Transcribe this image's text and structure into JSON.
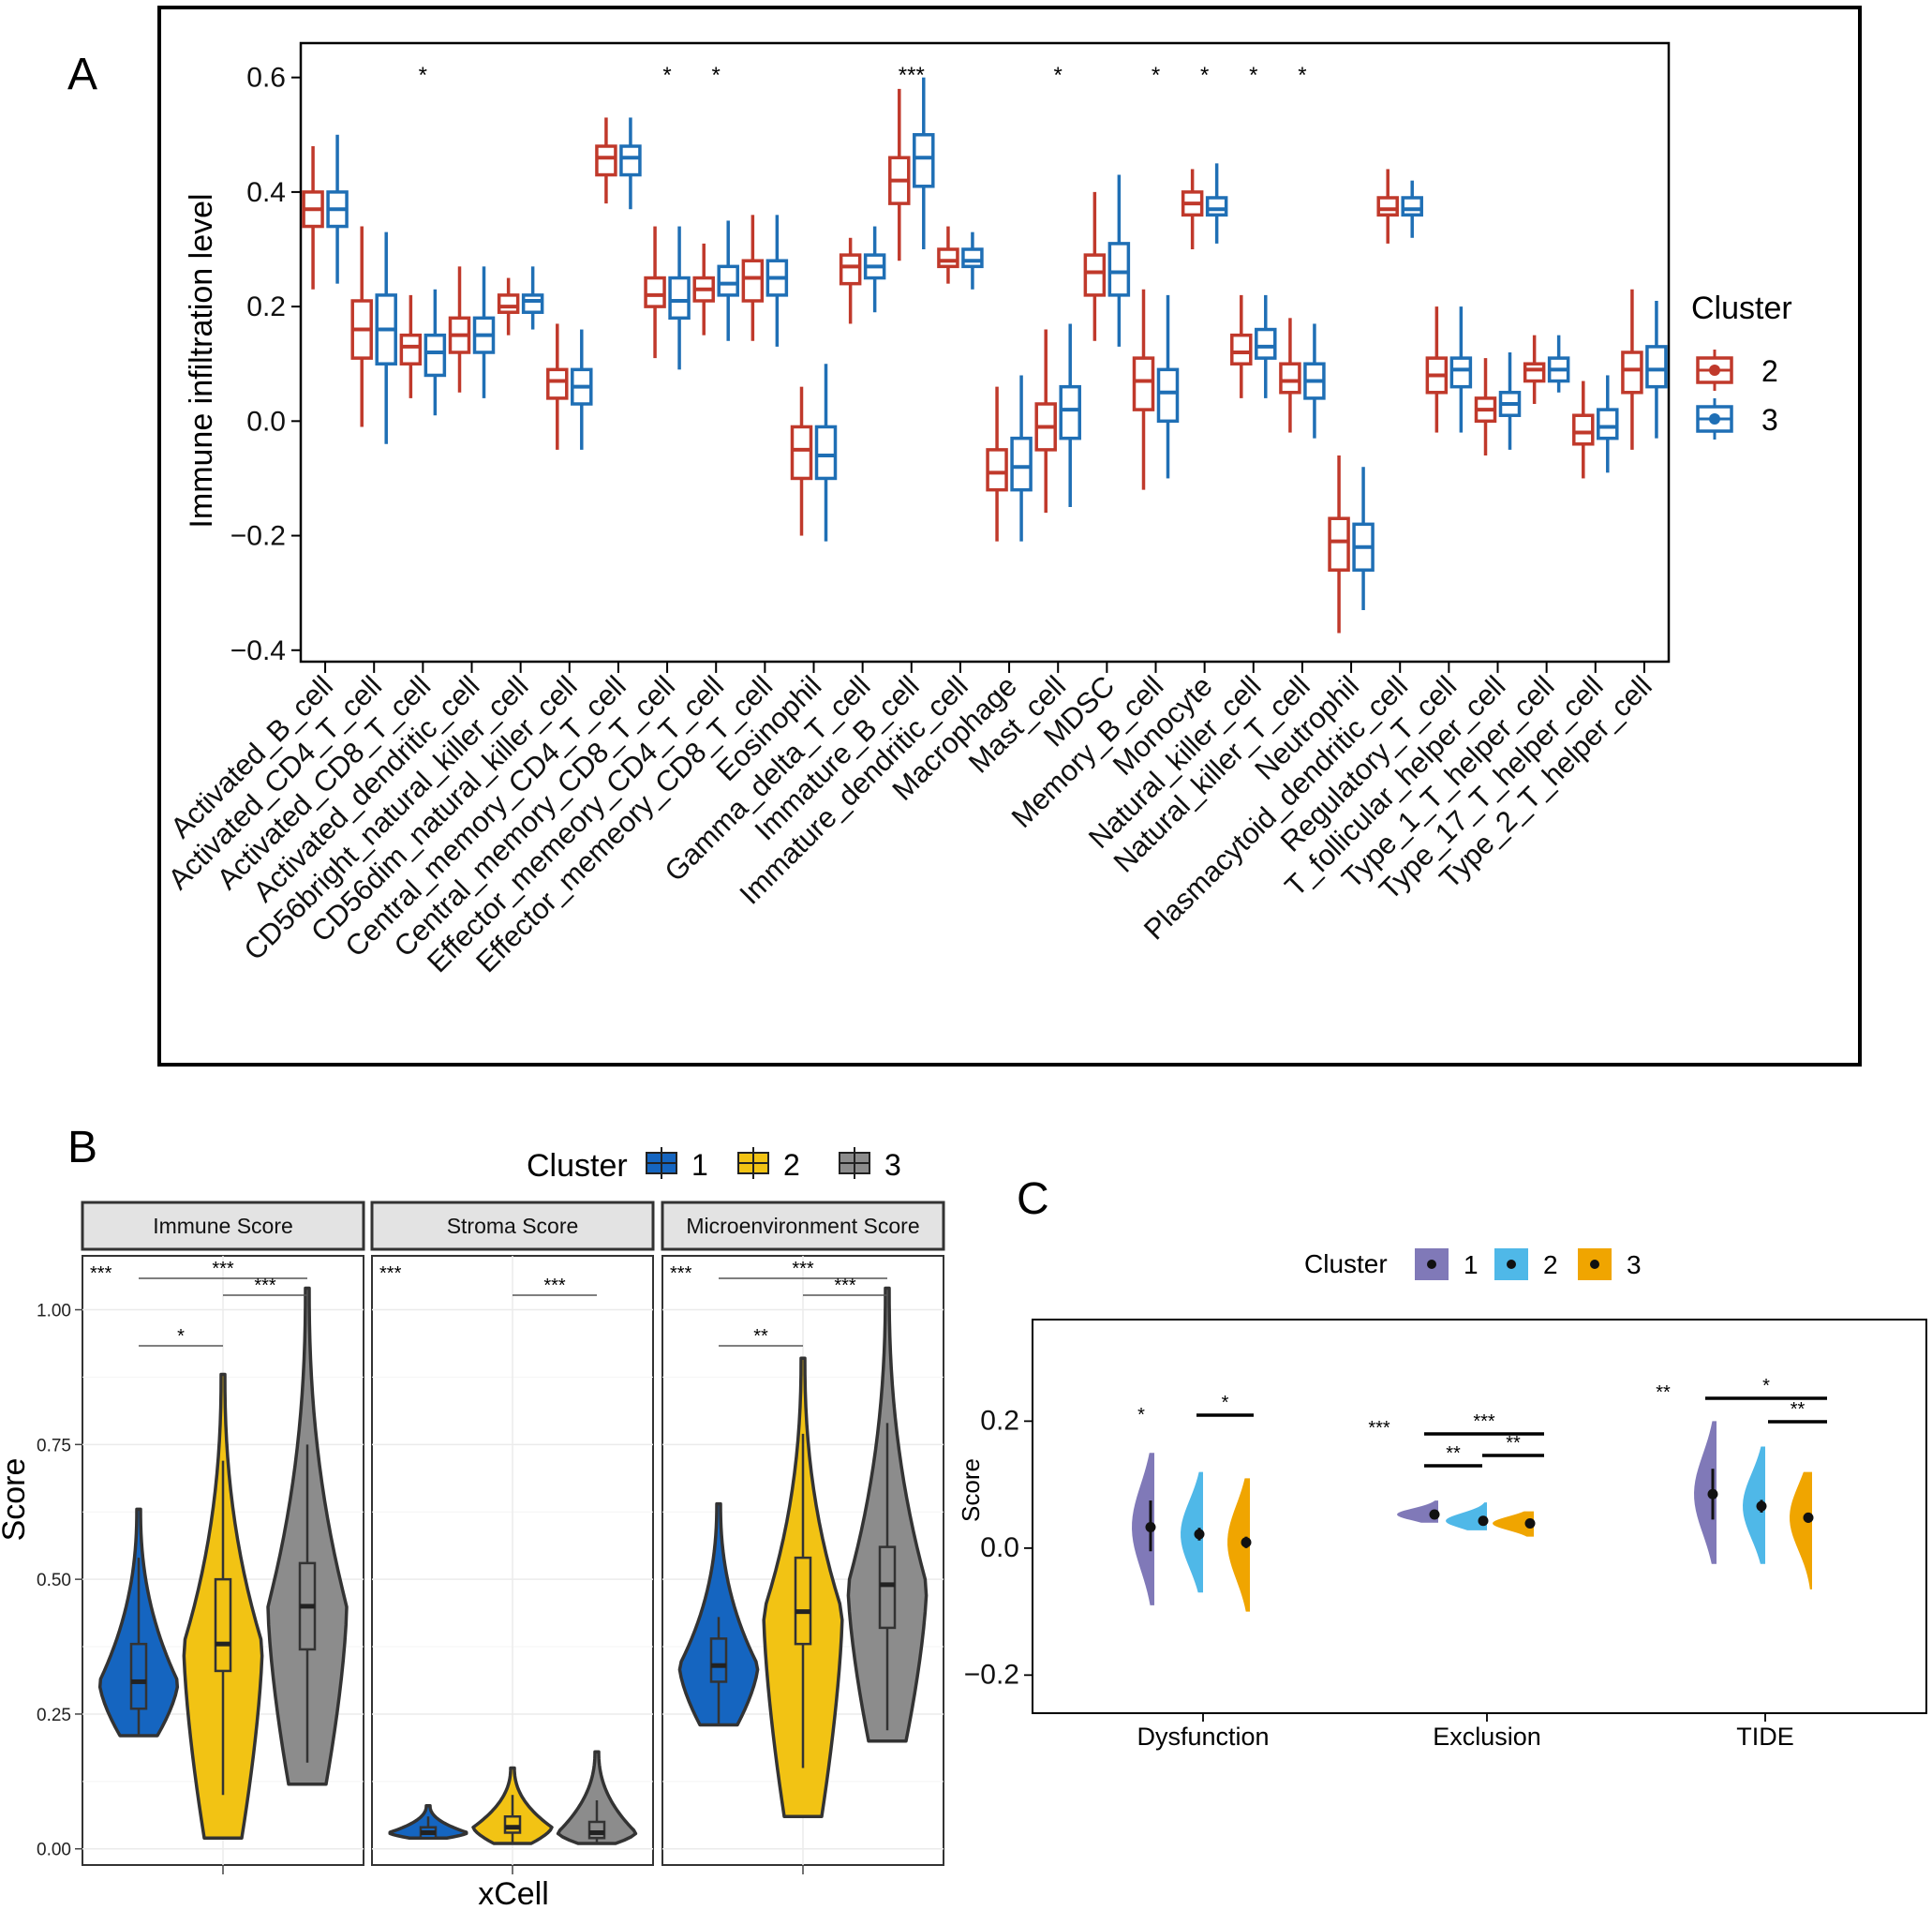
{
  "panels": {
    "a": "A",
    "b": "B",
    "c": "C"
  },
  "colors": {
    "cluster2_a": "#C0392B",
    "cluster3_a": "#1F6FB5",
    "b_cluster1": "#1565C0",
    "b_cluster2": "#F2C314",
    "b_cluster3": "#8C8C8C",
    "c_cluster1": "#8079B8",
    "c_cluster2": "#4FB8E8",
    "c_cluster3": "#F0A500"
  },
  "chart_data": [
    {
      "type": "boxplot",
      "id": "panelA",
      "ylabel": "Immune infiltration level",
      "yticks": [
        -0.4,
        -0.2,
        0.0,
        0.2,
        0.4,
        0.6
      ],
      "ytick_labels": [
        "−0.4",
        "−0.2",
        "0.0",
        "0.2",
        "0.4",
        "0.6"
      ],
      "ylim": [
        -0.42,
        0.66
      ],
      "legend": {
        "title": "Cluster",
        "entries": [
          "2",
          "3"
        ]
      },
      "categories": [
        "Activated_B_cell",
        "Activated_CD4_T_cell",
        "Activated_CD8_T_cell",
        "Activated_dendritic_cell",
        "CD56bright_natural_killer_cell",
        "CD56dim_natural_killer_cell",
        "Central_memory_CD4_T_cell",
        "Central_memory_CD8_T_cell",
        "Effector_memeory_CD4_T_cell",
        "Effector_memeory_CD8_T_cell",
        "Eosinophil",
        "Gamma_delta_T_cell",
        "Immature_B_cell",
        "Immature_dendritic_cell",
        "Macrophage",
        "Mast_cell",
        "MDSC",
        "Memory_B_cell",
        "Monocyte",
        "Natural_killer_cell",
        "Natural_killer_T_cell",
        "Neutrophil",
        "Plasmacytoid_dendritic_cell",
        "Regulatory_T_cell",
        "T_follicular_helper_cell",
        "Type_1_T_helper_cell",
        "Type_17_T_helper_cell",
        "Type_2_T_helper_cell"
      ],
      "significance": [
        "",
        "",
        "*",
        "",
        "",
        "",
        "",
        "*",
        "*",
        "",
        "",
        "",
        "***",
        "",
        "",
        "*",
        "",
        "*",
        "*",
        "*",
        "*",
        "",
        "",
        "",
        "",
        "",
        "",
        ""
      ],
      "series": [
        {
          "name": "2",
          "stats": [
            [
              0.23,
              0.34,
              0.37,
              0.4,
              0.48
            ],
            [
              -0.01,
              0.11,
              0.16,
              0.21,
              0.34
            ],
            [
              0.04,
              0.1,
              0.13,
              0.15,
              0.22
            ],
            [
              0.05,
              0.12,
              0.15,
              0.18,
              0.27
            ],
            [
              0.15,
              0.19,
              0.2,
              0.22,
              0.25
            ],
            [
              -0.05,
              0.04,
              0.07,
              0.09,
              0.17
            ],
            [
              0.38,
              0.43,
              0.46,
              0.48,
              0.53
            ],
            [
              0.11,
              0.2,
              0.22,
              0.25,
              0.34
            ],
            [
              0.15,
              0.21,
              0.23,
              0.25,
              0.31
            ],
            [
              0.14,
              0.21,
              0.25,
              0.28,
              0.36
            ],
            [
              -0.2,
              -0.1,
              -0.05,
              -0.01,
              0.06
            ],
            [
              0.17,
              0.24,
              0.27,
              0.29,
              0.32
            ],
            [
              0.28,
              0.38,
              0.42,
              0.46,
              0.58
            ],
            [
              0.24,
              0.27,
              0.28,
              0.3,
              0.34
            ],
            [
              -0.21,
              -0.12,
              -0.09,
              -0.05,
              0.06
            ],
            [
              -0.16,
              -0.05,
              -0.01,
              0.03,
              0.16
            ],
            [
              0.14,
              0.22,
              0.26,
              0.29,
              0.4
            ],
            [
              -0.12,
              0.02,
              0.07,
              0.11,
              0.23
            ],
            [
              0.3,
              0.36,
              0.38,
              0.4,
              0.44
            ],
            [
              0.04,
              0.1,
              0.12,
              0.15,
              0.22
            ],
            [
              -0.02,
              0.05,
              0.07,
              0.1,
              0.18
            ],
            [
              -0.37,
              -0.26,
              -0.21,
              -0.17,
              -0.06
            ],
            [
              0.31,
              0.36,
              0.37,
              0.39,
              0.44
            ],
            [
              -0.02,
              0.05,
              0.08,
              0.11,
              0.2
            ],
            [
              -0.06,
              0.0,
              0.02,
              0.04,
              0.11
            ],
            [
              0.03,
              0.07,
              0.09,
              0.1,
              0.15
            ],
            [
              -0.1,
              -0.04,
              -0.02,
              0.01,
              0.07
            ],
            [
              -0.05,
              0.05,
              0.09,
              0.12,
              0.23
            ]
          ]
        },
        {
          "name": "3",
          "stats": [
            [
              0.24,
              0.34,
              0.37,
              0.4,
              0.5
            ],
            [
              -0.04,
              0.1,
              0.16,
              0.22,
              0.33
            ],
            [
              0.01,
              0.08,
              0.12,
              0.15,
              0.23
            ],
            [
              0.04,
              0.12,
              0.15,
              0.18,
              0.27
            ],
            [
              0.16,
              0.19,
              0.21,
              0.22,
              0.27
            ],
            [
              -0.05,
              0.03,
              0.06,
              0.09,
              0.16
            ],
            [
              0.37,
              0.43,
              0.46,
              0.48,
              0.53
            ],
            [
              0.09,
              0.18,
              0.21,
              0.25,
              0.34
            ],
            [
              0.14,
              0.22,
              0.24,
              0.27,
              0.35
            ],
            [
              0.13,
              0.22,
              0.25,
              0.28,
              0.36
            ],
            [
              -0.21,
              -0.1,
              -0.06,
              -0.01,
              0.1
            ],
            [
              0.19,
              0.25,
              0.27,
              0.29,
              0.34
            ],
            [
              0.3,
              0.41,
              0.46,
              0.5,
              0.6
            ],
            [
              0.23,
              0.27,
              0.28,
              0.3,
              0.33
            ],
            [
              -0.21,
              -0.12,
              -0.08,
              -0.03,
              0.08
            ],
            [
              -0.15,
              -0.03,
              0.02,
              0.06,
              0.17
            ],
            [
              0.13,
              0.22,
              0.26,
              0.31,
              0.43
            ],
            [
              -0.1,
              0.0,
              0.05,
              0.09,
              0.22
            ],
            [
              0.31,
              0.36,
              0.37,
              0.39,
              0.45
            ],
            [
              0.04,
              0.11,
              0.13,
              0.16,
              0.22
            ],
            [
              -0.03,
              0.04,
              0.07,
              0.1,
              0.17
            ],
            [
              -0.33,
              -0.26,
              -0.22,
              -0.18,
              -0.08
            ],
            [
              0.32,
              0.36,
              0.37,
              0.39,
              0.42
            ],
            [
              -0.02,
              0.06,
              0.09,
              0.11,
              0.2
            ],
            [
              -0.05,
              0.01,
              0.03,
              0.05,
              0.12
            ],
            [
              0.05,
              0.07,
              0.09,
              0.11,
              0.15
            ],
            [
              -0.09,
              -0.03,
              -0.01,
              0.02,
              0.08
            ],
            [
              -0.03,
              0.06,
              0.09,
              0.13,
              0.21
            ]
          ]
        }
      ]
    },
    {
      "type": "violin",
      "id": "panelB",
      "xlabel": "xCell",
      "ylabel": "Score",
      "yticks": [
        0.0,
        0.25,
        0.5,
        0.75,
        1.0
      ],
      "ytick_labels": [
        "0.00",
        "0.25",
        "0.50",
        "0.75",
        "1.00"
      ],
      "ylim": [
        -0.03,
        1.1
      ],
      "legend": {
        "title": "Cluster",
        "entries": [
          "1",
          "2",
          "3"
        ]
      },
      "facets": [
        {
          "label": "Immune Score",
          "overall": "***",
          "groups": [
            {
              "cluster": "1",
              "min": 0.21,
              "max": 0.63,
              "q1": 0.26,
              "median": 0.31,
              "q3": 0.38,
              "wmin": 0.21,
              "wmax": 0.54
            },
            {
              "cluster": "2",
              "min": 0.02,
              "max": 0.88,
              "q1": 0.33,
              "median": 0.38,
              "q3": 0.5,
              "wmin": 0.1,
              "wmax": 0.72
            },
            {
              "cluster": "3",
              "min": 0.12,
              "max": 1.04,
              "q1": 0.37,
              "median": 0.45,
              "q3": 0.53,
              "wmin": 0.16,
              "wmax": 0.75
            }
          ],
          "comparisons": [
            {
              "from": "1",
              "to": "3",
              "label": "***"
            },
            {
              "from": "2",
              "to": "3",
              "label": "***"
            },
            {
              "from": "1",
              "to": "2",
              "label": "*"
            }
          ]
        },
        {
          "label": "Stroma Score",
          "overall": "***",
          "groups": [
            {
              "cluster": "1",
              "min": 0.02,
              "max": 0.08,
              "q1": 0.02,
              "median": 0.03,
              "q3": 0.04,
              "wmin": 0.02,
              "wmax": 0.06
            },
            {
              "cluster": "2",
              "min": 0.01,
              "max": 0.15,
              "q1": 0.03,
              "median": 0.04,
              "q3": 0.06,
              "wmin": 0.01,
              "wmax": 0.1
            },
            {
              "cluster": "3",
              "min": 0.01,
              "max": 0.18,
              "q1": 0.02,
              "median": 0.03,
              "q3": 0.05,
              "wmin": 0.01,
              "wmax": 0.09
            }
          ],
          "comparisons": [
            {
              "from": "2",
              "to": "3",
              "label": "***"
            }
          ]
        },
        {
          "label": "Microenvironment Score",
          "overall": "***",
          "groups": [
            {
              "cluster": "1",
              "min": 0.23,
              "max": 0.64,
              "q1": 0.31,
              "median": 0.34,
              "q3": 0.39,
              "wmin": 0.23,
              "wmax": 0.43
            },
            {
              "cluster": "2",
              "min": 0.06,
              "max": 0.91,
              "q1": 0.38,
              "median": 0.44,
              "q3": 0.54,
              "wmin": 0.15,
              "wmax": 0.77
            },
            {
              "cluster": "3",
              "min": 0.2,
              "max": 1.04,
              "q1": 0.41,
              "median": 0.49,
              "q3": 0.56,
              "wmin": 0.22,
              "wmax": 0.79
            }
          ],
          "comparisons": [
            {
              "from": "1",
              "to": "3",
              "label": "***"
            },
            {
              "from": "2",
              "to": "3",
              "label": "***"
            },
            {
              "from": "1",
              "to": "2",
              "label": "**"
            }
          ]
        }
      ]
    },
    {
      "type": "half-violin",
      "id": "panelC",
      "ylabel": "Score",
      "yticks": [
        -0.2,
        0.0,
        0.2
      ],
      "ytick_labels": [
        "−0.2",
        "0.0",
        "0.2"
      ],
      "ylim": [
        -0.26,
        0.36
      ],
      "legend": {
        "title": "Cluster",
        "entries": [
          "1",
          "2",
          "3"
        ]
      },
      "categories": [
        "Dysfunction",
        "Exclusion",
        "TIDE"
      ],
      "groups": [
        {
          "category": "Dysfunction",
          "overall": "*",
          "points": [
            {
              "cluster": "1",
              "mean": 0.033,
              "lo": -0.005,
              "hi": 0.075,
              "vmin": -0.09,
              "vmax": 0.15
            },
            {
              "cluster": "2",
              "mean": 0.022,
              "lo": 0.012,
              "hi": 0.032,
              "vmin": -0.07,
              "vmax": 0.12
            },
            {
              "cluster": "3",
              "mean": 0.009,
              "lo": 0.0,
              "hi": 0.018,
              "vmin": -0.1,
              "vmax": 0.11
            }
          ],
          "comparisons": [
            {
              "from": "2",
              "to": "3",
              "label": "*"
            }
          ]
        },
        {
          "category": "Exclusion",
          "overall": "***",
          "points": [
            {
              "cluster": "1",
              "mean": 0.053,
              "lo": 0.046,
              "hi": 0.06,
              "vmin": 0.04,
              "vmax": 0.075
            },
            {
              "cluster": "2",
              "mean": 0.043,
              "lo": 0.039,
              "hi": 0.047,
              "vmin": 0.028,
              "vmax": 0.072
            },
            {
              "cluster": "3",
              "mean": 0.039,
              "lo": 0.035,
              "hi": 0.043,
              "vmin": 0.018,
              "vmax": 0.058
            }
          ],
          "comparisons": [
            {
              "from": "1",
              "to": "3",
              "label": "***"
            },
            {
              "from": "2",
              "to": "3",
              "label": "**"
            },
            {
              "from": "1",
              "to": "2",
              "label": "**"
            }
          ]
        },
        {
          "category": "TIDE",
          "overall": "**",
          "points": [
            {
              "cluster": "1",
              "mean": 0.085,
              "lo": 0.045,
              "hi": 0.125,
              "vmin": -0.025,
              "vmax": 0.2
            },
            {
              "cluster": "2",
              "mean": 0.066,
              "lo": 0.056,
              "hi": 0.076,
              "vmin": -0.025,
              "vmax": 0.16
            },
            {
              "cluster": "3",
              "mean": 0.048,
              "lo": 0.04,
              "hi": 0.056,
              "vmin": -0.065,
              "vmax": 0.12
            }
          ],
          "comparisons": [
            {
              "from": "1",
              "to": "3",
              "label": "*"
            },
            {
              "from": "2",
              "to": "3",
              "label": "**"
            }
          ]
        }
      ]
    }
  ]
}
